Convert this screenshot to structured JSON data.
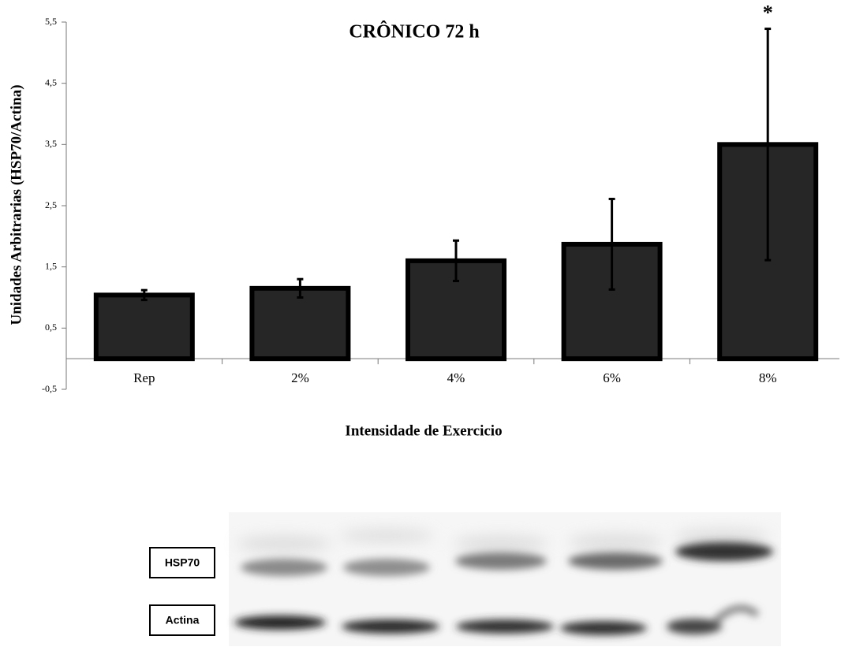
{
  "chart_data": {
    "type": "bar",
    "title": "CRÔNICO 72 h",
    "xlabel": "Intensidade de Exercicio",
    "ylabel": "Unidades Arbitrarias (HSP70/Actina)",
    "categories": [
      "Rep",
      "2%",
      "4%",
      "6%",
      "8%"
    ],
    "values": [
      1.04,
      1.15,
      1.6,
      1.87,
      3.5
    ],
    "errors": [
      0.08,
      0.15,
      0.33,
      0.74,
      1.89
    ],
    "color": "#262626",
    "annotation": "*",
    "ylim": [
      -0.5,
      5.5
    ],
    "yticks": [
      {
        "value": -0.5,
        "label": "-0,5"
      },
      {
        "value": 0.5,
        "label": "0,5"
      },
      {
        "value": 1.5,
        "label": "1,5"
      },
      {
        "value": 2.5,
        "label": "2,5"
      },
      {
        "value": 3.5,
        "label": "3,5"
      },
      {
        "value": 4.5,
        "label": "4,5"
      },
      {
        "value": 5.5,
        "label": "5,5"
      }
    ],
    "grid": false
  },
  "blot": {
    "labels": [
      "HSP70",
      "Actina"
    ]
  }
}
